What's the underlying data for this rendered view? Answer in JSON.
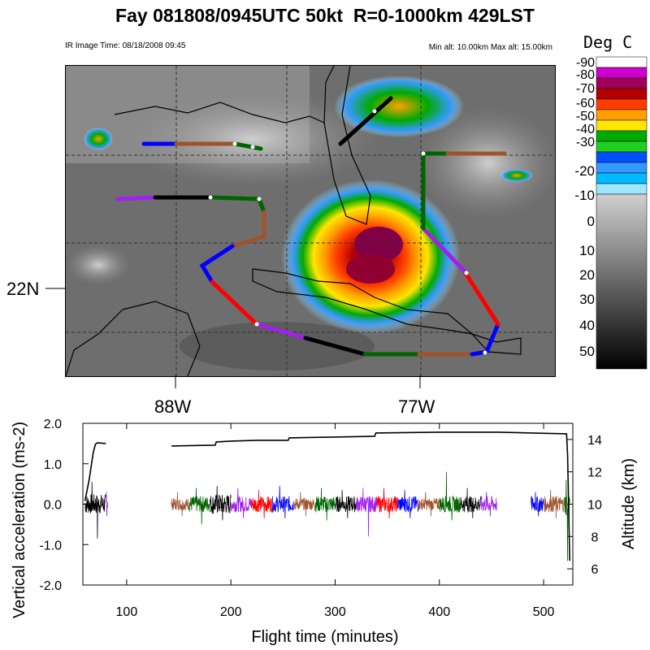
{
  "title": "Fay 081808/0945UTC 50kt  R=0-1000km 429LST",
  "ir_image_time": "IR Image Time: 08/18/2008 09:45",
  "alt_range": "Min alt: 10.00km  Max alt: 15.00km",
  "map": {
    "lat_label": "22N",
    "lon_labels": [
      "88W",
      "77W"
    ]
  },
  "colorbar": {
    "title": "Deg C",
    "labels": [
      "-90",
      "-80",
      "-70",
      "-60",
      "-50",
      "-40",
      "-30",
      "-20",
      "-10",
      "0",
      "10",
      "20",
      "30",
      "40",
      "50"
    ],
    "colors": [
      "#ffffff",
      "#cc00cc",
      "#a0005a",
      "#b40000",
      "#ff3c00",
      "#ffa000",
      "#ffe600",
      "#00aa00",
      "#20d020",
      "#0050ff",
      "#3399ff",
      "#00bbff",
      "#9fe6ff"
    ]
  },
  "chart_data": {
    "type": "line",
    "xlabel": "Flight time (minutes)",
    "ylabel": "Vertical acceleration (ms-2)",
    "y2label": "Altitude (km)",
    "xlim": [
      58,
      528
    ],
    "ylim": [
      -2.0,
      2.0
    ],
    "y2lim": [
      5,
      15
    ],
    "x_ticks": [
      100,
      200,
      300,
      400,
      500
    ],
    "y_ticks": [
      "-2.0",
      "-1.0",
      "0.0",
      "1.0",
      "2.0"
    ],
    "y2_ticks": [
      6,
      8,
      10,
      12,
      14
    ],
    "series": [
      {
        "name": "Altitude",
        "color": "#000000",
        "x": [
          60,
          64,
          68,
          70,
          72,
          80,
          80,
          143,
          143,
          185,
          186,
          200,
          225,
          255,
          256,
          300,
          338,
          339,
          400,
          455,
          488,
          522,
          523,
          525
        ],
        "y": [
          10.2,
          11.5,
          13.2,
          13.7,
          13.8,
          13.75,
          null,
          null,
          13.6,
          13.65,
          13.85,
          13.9,
          13.95,
          13.95,
          14.1,
          14.15,
          14.2,
          14.4,
          14.45,
          14.45,
          14.4,
          14.35,
          13.0,
          6.5
        ]
      },
      {
        "name": "Vertical acceleration",
        "segments": [
          {
            "x": [
              60,
              80
            ],
            "color": "#000000",
            "amp": 0.25,
            "spike_max": 0.55,
            "spike_min": -0.85
          },
          {
            "x": [
              80,
              82
            ],
            "color": "#a020f0",
            "amp": 0.15,
            "spike_max": 0.3,
            "spike_min": -0.3
          },
          {
            "x": [
              143,
              160
            ],
            "color": "#a0522d",
            "amp": 0.15,
            "spike_max": 0.3,
            "spike_min": -0.3
          },
          {
            "x": [
              160,
              180
            ],
            "color": "#006400",
            "amp": 0.2,
            "spike_max": 0.4,
            "spike_min": -0.5
          },
          {
            "x": [
              180,
              200
            ],
            "color": "#000000",
            "amp": 0.25,
            "spike_max": 0.45,
            "spike_min": -0.4
          },
          {
            "x": [
              200,
              220
            ],
            "color": "#a020f0",
            "amp": 0.2,
            "spike_max": 0.4,
            "spike_min": -0.35
          },
          {
            "x": [
              220,
              240
            ],
            "color": "#ff0000",
            "amp": 0.2,
            "spike_max": 0.35,
            "spike_min": -0.35
          },
          {
            "x": [
              240,
              260
            ],
            "color": "#0000ff",
            "amp": 0.2,
            "spike_max": 0.45,
            "spike_min": -0.35
          },
          {
            "x": [
              260,
              280
            ],
            "color": "#a0522d",
            "amp": 0.15,
            "spike_max": 0.3,
            "spike_min": -0.3
          },
          {
            "x": [
              280,
              300
            ],
            "color": "#006400",
            "amp": 0.2,
            "spike_max": 0.4,
            "spike_min": -0.4
          },
          {
            "x": [
              300,
              320
            ],
            "color": "#000000",
            "amp": 0.2,
            "spike_max": 0.35,
            "spike_min": -0.35
          },
          {
            "x": [
              320,
              340
            ],
            "color": "#a020f0",
            "amp": 0.2,
            "spike_max": 0.4,
            "spike_min": -0.8
          },
          {
            "x": [
              340,
              360
            ],
            "color": "#ff0000",
            "amp": 0.2,
            "spike_max": 0.4,
            "spike_min": -0.35
          },
          {
            "x": [
              360,
              380
            ],
            "color": "#0000ff",
            "amp": 0.2,
            "spike_max": 0.35,
            "spike_min": -0.35
          },
          {
            "x": [
              380,
              400
            ],
            "color": "#a0522d",
            "amp": 0.15,
            "spike_max": 0.3,
            "spike_min": -0.3
          },
          {
            "x": [
              400,
              420
            ],
            "color": "#006400",
            "amp": 0.2,
            "spike_max": 0.8,
            "spike_min": -0.4
          },
          {
            "x": [
              420,
              440
            ],
            "color": "#000000",
            "amp": 0.2,
            "spike_max": 0.4,
            "spike_min": -0.35
          },
          {
            "x": [
              440,
              455
            ],
            "color": "#a020f0",
            "amp": 0.2,
            "spike_max": 0.3,
            "spike_min": -0.3
          },
          {
            "x": [
              488,
              500
            ],
            "color": "#0000ff",
            "amp": 0.2,
            "spike_max": 0.3,
            "spike_min": -0.3
          },
          {
            "x": [
              500,
              520
            ],
            "color": "#a0522d",
            "amp": 0.2,
            "spike_max": 0.35,
            "spike_min": -0.35
          },
          {
            "x": [
              520,
              525
            ],
            "color": "#006400",
            "amp": 0.3,
            "spike_max": 0.6,
            "spike_min": -1.4
          }
        ]
      }
    ]
  }
}
